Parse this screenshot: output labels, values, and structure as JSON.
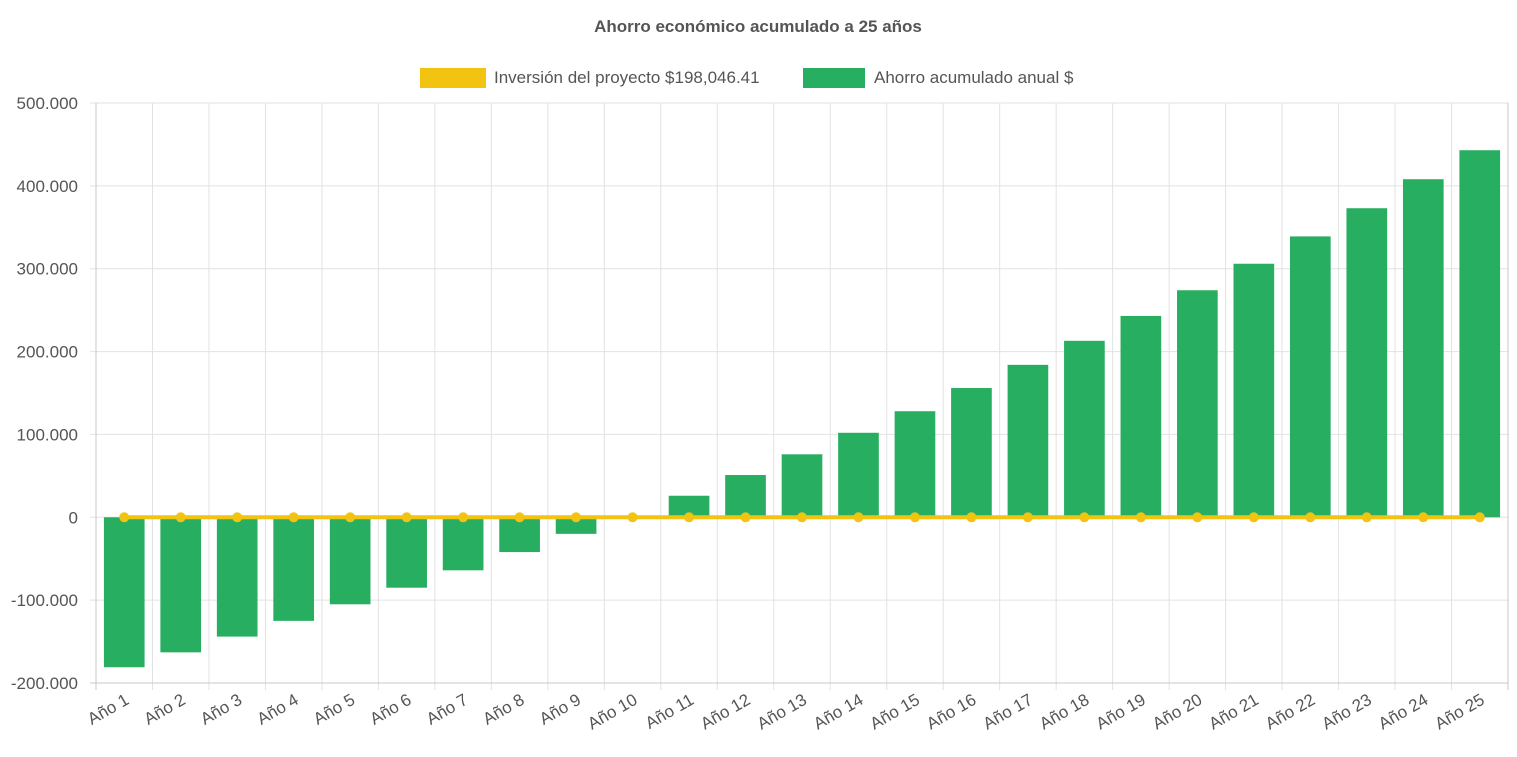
{
  "chart_data": {
    "type": "bar",
    "title": "Ahorro económico acumulado a 25 años",
    "categories": [
      "Año 1",
      "Año 2",
      "Año 3",
      "Año 4",
      "Año 5",
      "Año 6",
      "Año 7",
      "Año 8",
      "Año 9",
      "Año 10",
      "Año 11",
      "Año 12",
      "Año 13",
      "Año 14",
      "Año 15",
      "Año 16",
      "Año 17",
      "Año 18",
      "Año 19",
      "Año 20",
      "Año 21",
      "Año 22",
      "Año 23",
      "Año 24",
      "Año 25"
    ],
    "series": [
      {
        "name": "Inversión del proyecto $198,046.41",
        "type": "line",
        "color": "#f2c311",
        "values": [
          0,
          0,
          0,
          0,
          0,
          0,
          0,
          0,
          0,
          0,
          0,
          0,
          0,
          0,
          0,
          0,
          0,
          0,
          0,
          0,
          0,
          0,
          0,
          0,
          0
        ]
      },
      {
        "name": "Ahorro acumulado anual $",
        "type": "bar",
        "color": "#27ae60",
        "values": [
          -181000,
          -163000,
          -144000,
          -125000,
          -105000,
          -85000,
          -64000,
          -42000,
          -20000,
          2000,
          26000,
          51000,
          76000,
          102000,
          128000,
          156000,
          184000,
          213000,
          243000,
          274000,
          306000,
          339000,
          373000,
          408000,
          443000
        ]
      }
    ],
    "ylim": [
      -200000,
      500000
    ],
    "yticks": [
      500000,
      400000,
      300000,
      200000,
      100000,
      0,
      -100000,
      -200000
    ],
    "ytick_labels": [
      "500.000",
      "400.000",
      "300.000",
      "200.000",
      "100.000",
      "0",
      "-100.000",
      "-200.000"
    ],
    "grid": true,
    "legend_position": "top-center"
  }
}
